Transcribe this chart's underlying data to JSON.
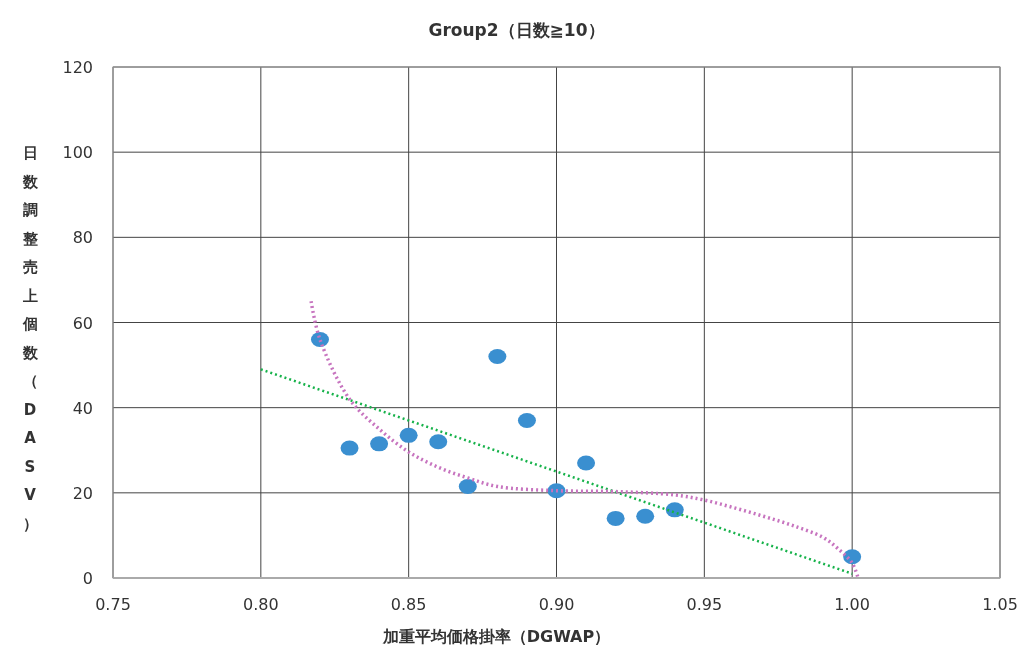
{
  "chart_data": {
    "type": "scatter",
    "title": "Group2（日数≧10）",
    "xlabel": "加重平均価格掛率（DGWAP）",
    "ylabel": "日数調整売上個数（DASV）",
    "xlim": [
      0.75,
      1.05
    ],
    "xticks": [
      {
        "value": 0.75,
        "label": "0.75"
      },
      {
        "value": 0.8,
        "label": "0.80"
      },
      {
        "value": 0.85,
        "label": "0.85"
      },
      {
        "value": 0.9,
        "label": "0.90"
      },
      {
        "value": 0.95,
        "label": "0.95"
      },
      {
        "value": 1.0,
        "label": "1.00"
      },
      {
        "value": 1.05,
        "label": "1.05"
      }
    ],
    "ylim": [
      0,
      120
    ],
    "yticks": [
      0,
      20,
      40,
      60,
      80,
      100,
      120
    ],
    "grid": true,
    "series": [
      {
        "color": "#3a8fd0",
        "marker": "circle",
        "x": [
          0.82,
          0.83,
          0.84,
          0.85,
          0.86,
          0.87,
          0.88,
          0.89,
          0.9,
          0.91,
          0.92,
          0.93,
          0.94,
          1.0
        ],
        "values": [
          56,
          30.5,
          31.5,
          33.5,
          32,
          21.5,
          52,
          37,
          20.5,
          27,
          14,
          14.5,
          16,
          5
        ]
      },
      {
        "type": "line",
        "color": "#16b24a",
        "line_style": "dotted",
        "x": [
          0.8,
          1.0
        ],
        "values": [
          49,
          1
        ]
      },
      {
        "type": "line",
        "color": "#c774bf",
        "line_style": "dotted",
        "x": [
          0.817,
          0.82,
          0.83,
          0.84,
          0.85,
          0.86,
          0.87,
          0.88,
          0.9,
          0.92,
          0.94,
          0.95,
          0.96,
          0.97,
          0.98,
          0.99,
          0.995,
          1.0,
          1.002
        ],
        "values": [
          65,
          56,
          42,
          35,
          29.6,
          26,
          23.5,
          21.5,
          20.5,
          20.3,
          19.5,
          18.3,
          16.5,
          14.5,
          12.3,
          9.6,
          7,
          3.5,
          0
        ]
      }
    ]
  }
}
